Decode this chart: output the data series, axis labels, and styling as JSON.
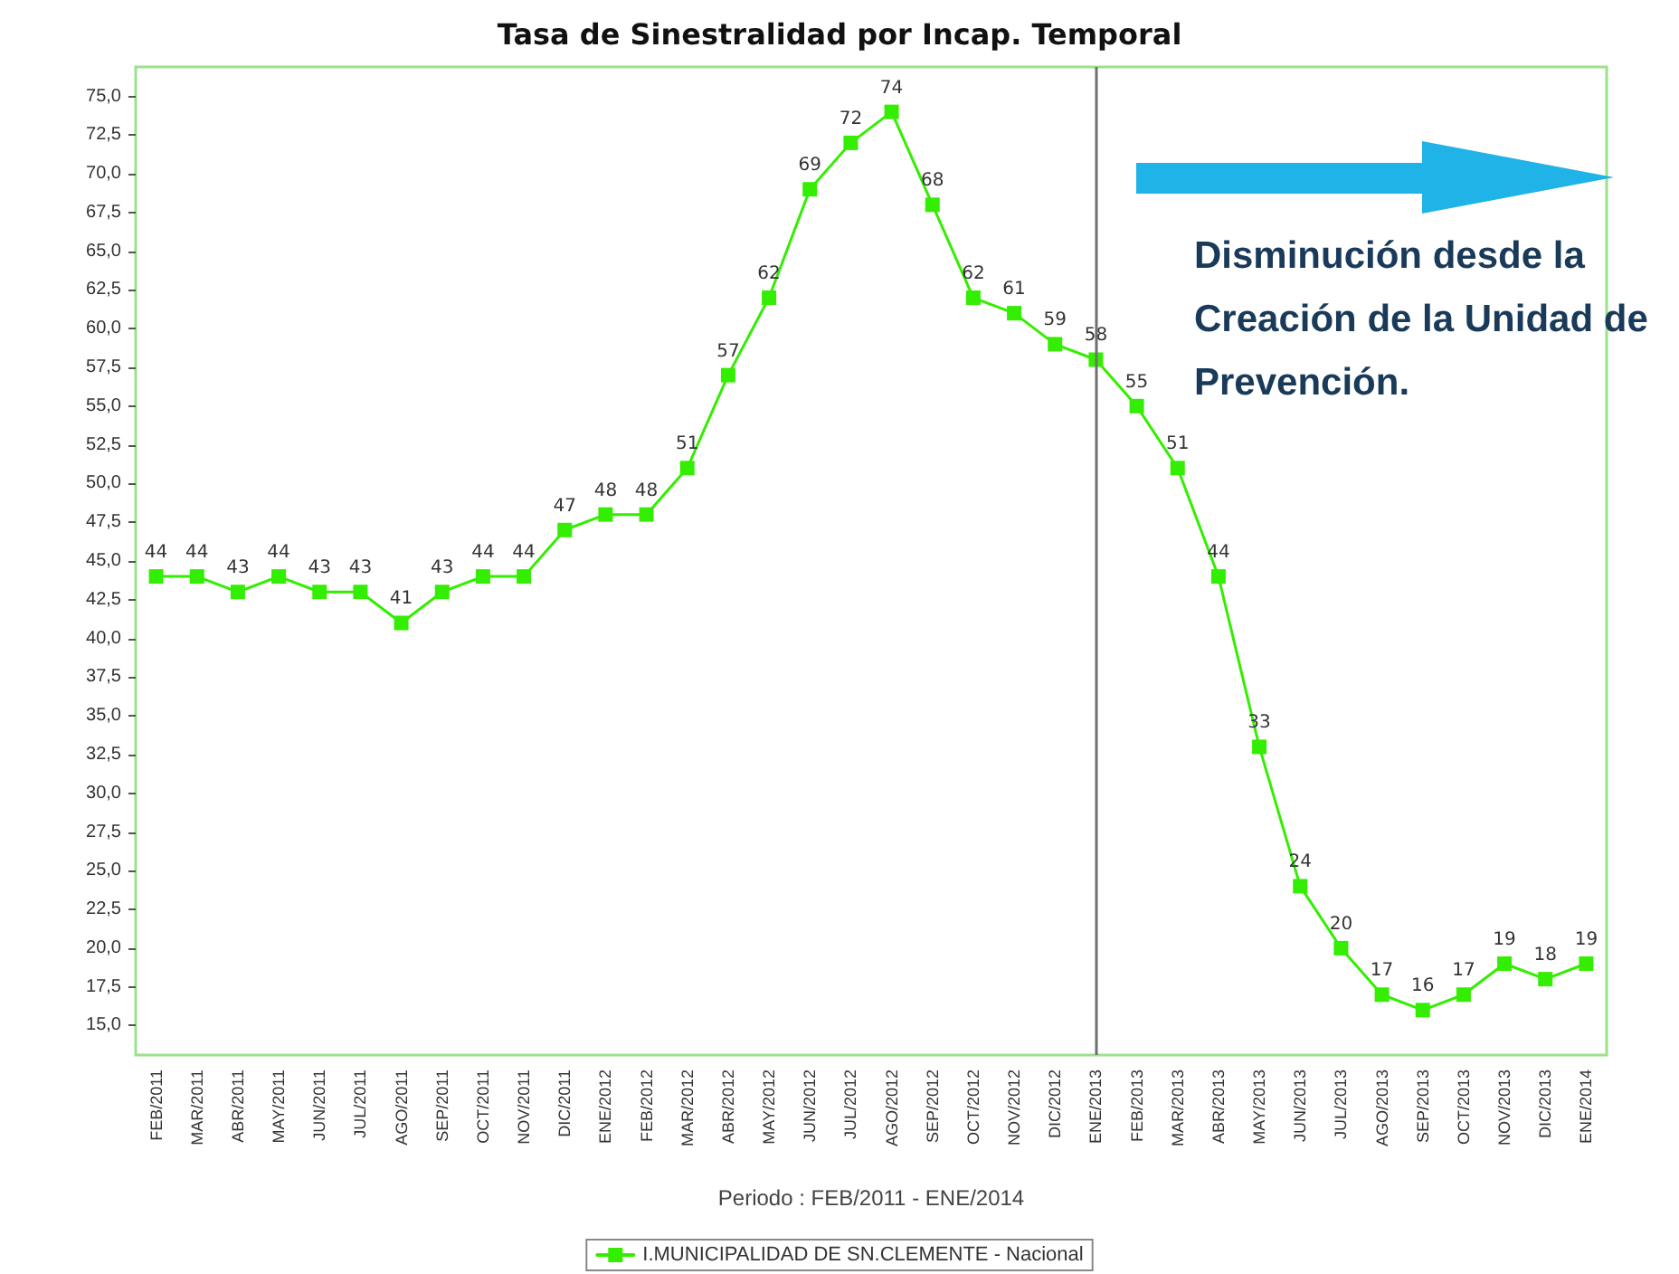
{
  "chart_data": {
    "type": "line",
    "title": "Tasa de Sinestralidad por Incap. Temporal",
    "xlabel": "Periodo : FEB/2011 - ENE/2014",
    "categories": [
      "FEB/2011",
      "MAR/2011",
      "ABR/2011",
      "MAY/2011",
      "JUN/2011",
      "JUL/2011",
      "AGO/2011",
      "SEP/2011",
      "OCT/2011",
      "NOV/2011",
      "DIC/2011",
      "ENE/2012",
      "FEB/2012",
      "MAR/2012",
      "ABR/2012",
      "MAY/2012",
      "JUN/2012",
      "JUL/2012",
      "AGO/2012",
      "SEP/2012",
      "OCT/2012",
      "NOV/2012",
      "DIC/2012",
      "ENE/2013",
      "FEB/2013",
      "MAR/2013",
      "ABR/2013",
      "MAY/2013",
      "JUN/2013",
      "JUL/2013",
      "AGO/2013",
      "SEP/2013",
      "OCT/2013",
      "NOV/2013",
      "DIC/2013",
      "ENE/2014"
    ],
    "series": [
      {
        "name": "I.MUNICIPALIDAD DE SN.CLEMENTE - Nacional",
        "color": "#33ee00",
        "values": [
          44,
          44,
          43,
          44,
          43,
          43,
          41,
          43,
          44,
          44,
          47,
          48,
          48,
          51,
          57,
          62,
          69,
          72,
          74,
          68,
          62,
          61,
          59,
          58,
          55,
          51,
          44,
          33,
          24,
          20,
          17,
          16,
          17,
          19,
          18,
          19
        ]
      }
    ],
    "ylim": [
      13.1,
      76.9
    ],
    "yticks": [
      {
        "value": 15,
        "label": "15,0"
      },
      {
        "value": 17.5,
        "label": "17,5"
      },
      {
        "value": 20,
        "label": "20,0"
      },
      {
        "value": 22.5,
        "label": "22,5"
      },
      {
        "value": 25,
        "label": "25,0"
      },
      {
        "value": 27.5,
        "label": "27,5"
      },
      {
        "value": 30,
        "label": "30,0"
      },
      {
        "value": 32.5,
        "label": "32,5"
      },
      {
        "value": 35,
        "label": "35,0"
      },
      {
        "value": 37.5,
        "label": "37,5"
      },
      {
        "value": 40,
        "label": "40,0"
      },
      {
        "value": 42.5,
        "label": "42,5"
      },
      {
        "value": 45,
        "label": "45,0"
      },
      {
        "value": 47.5,
        "label": "47,5"
      },
      {
        "value": 50,
        "label": "50,0"
      },
      {
        "value": 52.5,
        "label": "52,5"
      },
      {
        "value": 55,
        "label": "55,0"
      },
      {
        "value": 57.5,
        "label": "57,5"
      },
      {
        "value": 60,
        "label": "60,0"
      },
      {
        "value": 62.5,
        "label": "62,5"
      },
      {
        "value": 65,
        "label": "65,0"
      },
      {
        "value": 67.5,
        "label": "67,5"
      },
      {
        "value": 70,
        "label": "70,0"
      },
      {
        "value": 72.5,
        "label": "72,5"
      },
      {
        "value": 75,
        "label": "75,0"
      }
    ],
    "ref_lines": [
      {
        "axis": "x",
        "value": "ENE/2013",
        "color": "#707070"
      }
    ],
    "annotations": [
      "Disminución desde la Creación de la Unidad de Prevención."
    ],
    "data_labels": true,
    "grid": false,
    "legend": "bottom",
    "marker": "square",
    "line_style": "solid"
  }
}
